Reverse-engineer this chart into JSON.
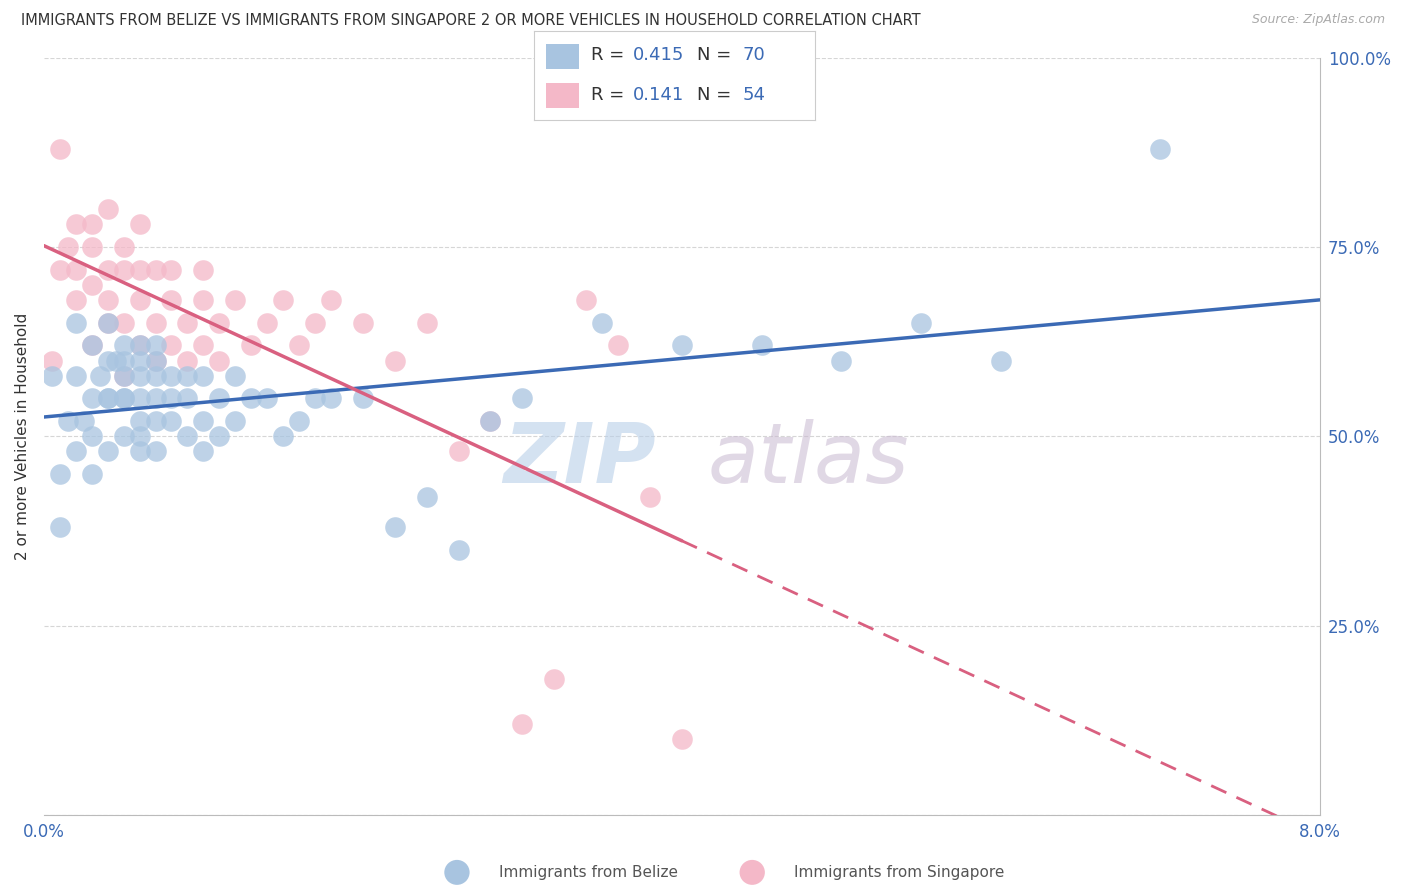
{
  "title": "IMMIGRANTS FROM BELIZE VS IMMIGRANTS FROM SINGAPORE 2 OR MORE VEHICLES IN HOUSEHOLD CORRELATION CHART",
  "source": "Source: ZipAtlas.com",
  "ylabel": "2 or more Vehicles in Household",
  "xlim": [
    0.0,
    0.08
  ],
  "ylim": [
    0.0,
    1.0
  ],
  "x_ticks": [
    0.0,
    0.01,
    0.02,
    0.03,
    0.04,
    0.05,
    0.06,
    0.07,
    0.08
  ],
  "x_tick_labels": [
    "0.0%",
    "",
    "",
    "",
    "",
    "",
    "",
    "",
    "8.0%"
  ],
  "y_ticks": [
    0.0,
    0.25,
    0.5,
    0.75,
    1.0
  ],
  "y_tick_labels": [
    "",
    "25.0%",
    "50.0%",
    "75.0%",
    "100.0%"
  ],
  "legend_belize_R": "0.415",
  "legend_belize_N": "70",
  "legend_singapore_R": "0.141",
  "legend_singapore_N": "54",
  "belize_color": "#a8c4e0",
  "singapore_color": "#f4b8c8",
  "belize_line_color": "#3b6ab5",
  "singapore_line_color": "#d96080",
  "watermark_zip_color": "#b8cfe8",
  "watermark_atlas_color": "#c8b8d0",
  "belize_x": [
    0.0005,
    0.001,
    0.001,
    0.0015,
    0.002,
    0.002,
    0.002,
    0.0025,
    0.003,
    0.003,
    0.003,
    0.003,
    0.0035,
    0.004,
    0.004,
    0.004,
    0.004,
    0.004,
    0.0045,
    0.005,
    0.005,
    0.005,
    0.005,
    0.005,
    0.005,
    0.006,
    0.006,
    0.006,
    0.006,
    0.006,
    0.006,
    0.006,
    0.007,
    0.007,
    0.007,
    0.007,
    0.007,
    0.007,
    0.008,
    0.008,
    0.008,
    0.009,
    0.009,
    0.009,
    0.01,
    0.01,
    0.01,
    0.011,
    0.011,
    0.012,
    0.012,
    0.013,
    0.014,
    0.015,
    0.016,
    0.017,
    0.018,
    0.02,
    0.022,
    0.024,
    0.026,
    0.028,
    0.03,
    0.035,
    0.04,
    0.045,
    0.05,
    0.055,
    0.06,
    0.07
  ],
  "belize_y": [
    0.58,
    0.38,
    0.45,
    0.52,
    0.48,
    0.58,
    0.65,
    0.52,
    0.45,
    0.5,
    0.55,
    0.62,
    0.58,
    0.48,
    0.55,
    0.6,
    0.65,
    0.55,
    0.6,
    0.5,
    0.55,
    0.58,
    0.6,
    0.62,
    0.55,
    0.48,
    0.52,
    0.55,
    0.58,
    0.6,
    0.62,
    0.5,
    0.48,
    0.52,
    0.55,
    0.58,
    0.6,
    0.62,
    0.52,
    0.55,
    0.58,
    0.5,
    0.55,
    0.58,
    0.48,
    0.52,
    0.58,
    0.5,
    0.55,
    0.52,
    0.58,
    0.55,
    0.55,
    0.5,
    0.52,
    0.55,
    0.55,
    0.55,
    0.38,
    0.42,
    0.35,
    0.52,
    0.55,
    0.65,
    0.62,
    0.62,
    0.6,
    0.65,
    0.6,
    0.88
  ],
  "singapore_x": [
    0.0005,
    0.001,
    0.001,
    0.0015,
    0.002,
    0.002,
    0.002,
    0.003,
    0.003,
    0.003,
    0.003,
    0.004,
    0.004,
    0.004,
    0.004,
    0.005,
    0.005,
    0.005,
    0.005,
    0.006,
    0.006,
    0.006,
    0.006,
    0.007,
    0.007,
    0.007,
    0.008,
    0.008,
    0.008,
    0.009,
    0.009,
    0.01,
    0.01,
    0.01,
    0.011,
    0.011,
    0.012,
    0.013,
    0.014,
    0.015,
    0.016,
    0.017,
    0.018,
    0.02,
    0.022,
    0.024,
    0.026,
    0.028,
    0.03,
    0.032,
    0.034,
    0.036,
    0.038,
    0.04
  ],
  "singapore_y": [
    0.6,
    0.88,
    0.72,
    0.75,
    0.72,
    0.78,
    0.68,
    0.75,
    0.7,
    0.62,
    0.78,
    0.72,
    0.65,
    0.8,
    0.68,
    0.72,
    0.65,
    0.75,
    0.58,
    0.68,
    0.72,
    0.62,
    0.78,
    0.65,
    0.72,
    0.6,
    0.68,
    0.62,
    0.72,
    0.6,
    0.65,
    0.68,
    0.62,
    0.72,
    0.65,
    0.6,
    0.68,
    0.62,
    0.65,
    0.68,
    0.62,
    0.65,
    0.68,
    0.65,
    0.6,
    0.65,
    0.48,
    0.52,
    0.12,
    0.18,
    0.68,
    0.62,
    0.42,
    0.1
  ]
}
